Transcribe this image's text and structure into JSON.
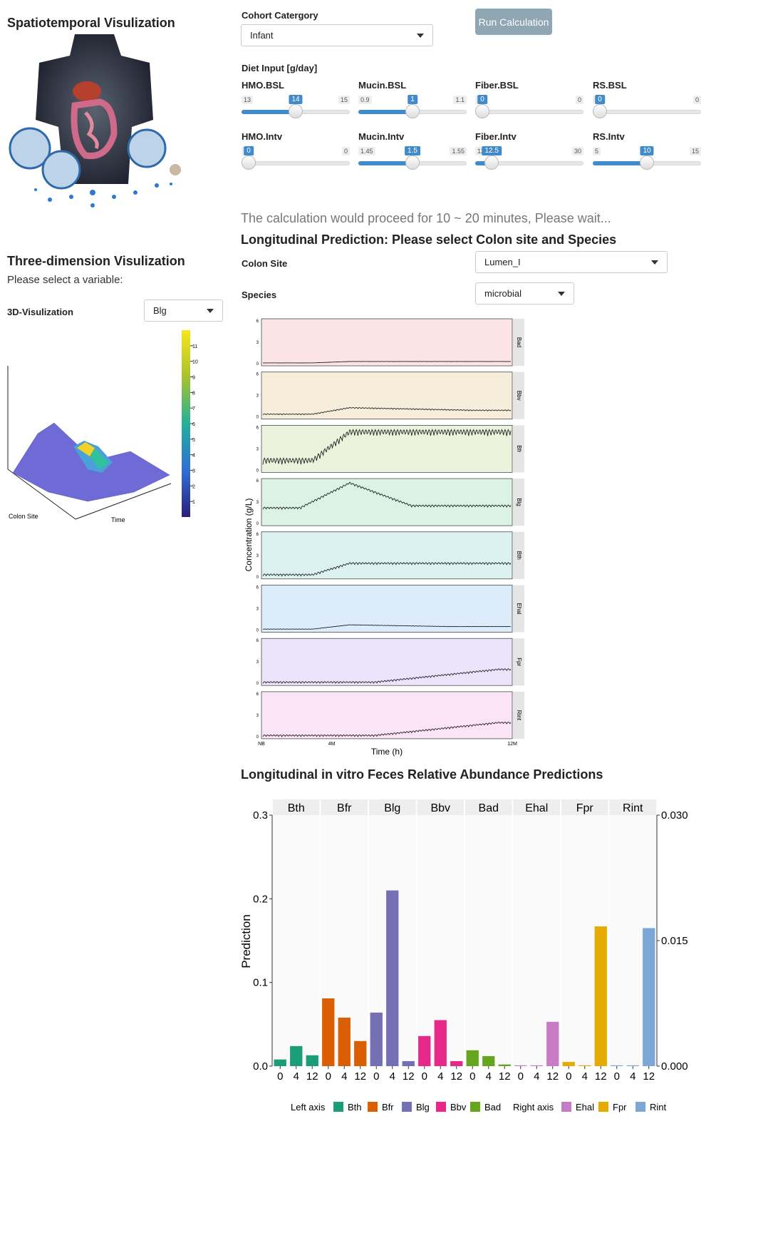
{
  "left": {
    "spatio_title": "Spatiotemporal Visulization",
    "three_d_title": "Three-dimension Visulization",
    "select_prompt": "Please select a variable:",
    "viz_label": "3D-Visulization",
    "viz_value": "Blg",
    "colorbar_ticks": [
      "1",
      "2",
      "3",
      "4",
      "5",
      "6",
      "7",
      "8",
      "9",
      "10",
      "11"
    ],
    "axis_colon": "Colon Site",
    "axis_time": "Time"
  },
  "controls": {
    "cohort_label": "Cohort Catergory",
    "cohort_value": "Infant",
    "run_button": "Run Calculation",
    "diet_label": "Diet Input [g/day]"
  },
  "sliders": [
    {
      "name": "HMO.BSL",
      "min": "13",
      "max": "15",
      "value": "14",
      "frac": 0.5
    },
    {
      "name": "Mucin.BSL",
      "min": "0.9",
      "max": "1.1",
      "value": "1",
      "frac": 0.5
    },
    {
      "name": "Fiber.BSL",
      "min": "0",
      "max": "0",
      "value": "0",
      "frac": 0
    },
    {
      "name": "RS.BSL",
      "min": "0",
      "max": "0",
      "value": "0",
      "frac": 0
    },
    {
      "name": "HMO.Intv",
      "min": "0",
      "max": "0",
      "value": "0",
      "frac": 0
    },
    {
      "name": "Mucin.Intv",
      "min": "1.45",
      "max": "1.55",
      "value": "1.5",
      "frac": 0.5
    },
    {
      "name": "Fiber.Intv",
      "min": "12.5",
      "max": "30",
      "value": "12.5",
      "frac": 0.1
    },
    {
      "name": "RS.Intv",
      "min": "5",
      "max": "15",
      "value": "10",
      "frac": 0.5
    }
  ],
  "wait_text": "The calculation would proceed for 10 ~ 20 minutes, Please wait...",
  "longitudinal": {
    "title": "Longitudinal Prediction: Please select Colon site and Species",
    "colon_label": "Colon Site",
    "colon_value": "Lumen_I",
    "species_label": "Species",
    "species_value": "microbial"
  },
  "chart_data": [
    {
      "type": "line",
      "ylabel": "Concentration (g/L)",
      "xlabel": "Time (h)",
      "x_ticks": [
        "NB",
        "4M",
        "12M"
      ],
      "y_ticks": [
        "0",
        "3",
        "6"
      ],
      "ylim": [
        0,
        6
      ],
      "panels": [
        {
          "name": "Bad",
          "color": "#fce4e4",
          "base": 0.1,
          "jump": 0.2,
          "osc": 0.02,
          "start": 0.2,
          "grow": 0.35
        },
        {
          "name": "Bbv",
          "color": "#f6eddb",
          "base": 0.3,
          "jump": 0.9,
          "osc": 0.15,
          "start": 0.2,
          "grow": 0.35,
          "decay": 0.5
        },
        {
          "name": "Bfr",
          "color": "#ecf3dc",
          "base": 0.8,
          "jump": 4.0,
          "osc": 0.9,
          "start": 0.2,
          "grow": 0.35
        },
        {
          "name": "Blg",
          "color": "#dcf2e4",
          "base": 2.0,
          "jump": 3.5,
          "osc": 0.3,
          "start": 0.15,
          "grow": 0.35,
          "decay": 0.25,
          "final": 0.3
        },
        {
          "name": "Bth",
          "color": "#dcf2f1",
          "base": 0.1,
          "jump": 1.6,
          "osc": 0.3,
          "start": 0.2,
          "grow": 0.35
        },
        {
          "name": "Ehal",
          "color": "#dcecfb",
          "base": 0.1,
          "jump": 0.6,
          "osc": 0.05,
          "start": 0.2,
          "grow": 0.35,
          "decay": 0.4
        },
        {
          "name": "Fpr",
          "color": "#ece4fb",
          "base": 0.0,
          "jump": 1.8,
          "osc": 0.25,
          "start": 0.45,
          "grow": 0.95
        },
        {
          "name": "Rint",
          "color": "#fbe4f5",
          "base": 0.0,
          "jump": 1.8,
          "osc": 0.25,
          "start": 0.45,
          "grow": 0.95
        }
      ]
    },
    {
      "type": "bar",
      "title": "Longitudinal in vitro Feces Relative Abundance Predictions",
      "ylabel": "Prediction",
      "ylim_left": [
        0,
        0.3
      ],
      "ylim_right": [
        0,
        0.03
      ],
      "left_ticks": [
        "0.0",
        "0.1",
        "0.2",
        "0.3"
      ],
      "right_ticks": [
        "0.000",
        "0.015",
        "0.030"
      ],
      "x_categories": [
        "0",
        "4",
        "12"
      ],
      "facets": [
        {
          "name": "Bth",
          "color": "#1b9e77",
          "axis": "left",
          "values": [
            0.008,
            0.024,
            0.013
          ]
        },
        {
          "name": "Bfr",
          "color": "#d95f02",
          "axis": "left",
          "values": [
            0.081,
            0.058,
            0.03
          ]
        },
        {
          "name": "Blg",
          "color": "#7570b3",
          "axis": "left",
          "values": [
            0.064,
            0.21,
            0.006
          ]
        },
        {
          "name": "Bbv",
          "color": "#e7298a",
          "axis": "left",
          "values": [
            0.036,
            0.055,
            0.006
          ]
        },
        {
          "name": "Bad",
          "color": "#66a61e",
          "axis": "left",
          "values": [
            0.019,
            0.012,
            0.002
          ]
        },
        {
          "name": "Ehal",
          "color": "#c77cc5",
          "axis": "right",
          "values": [
            0.0001,
            0.0001,
            0.0053
          ]
        },
        {
          "name": "Fpr",
          "color": "#e6ab02",
          "axis": "right",
          "values": [
            0.0005,
            0.0001,
            0.0167
          ]
        },
        {
          "name": "Rint",
          "color": "#7aa7d6",
          "axis": "right",
          "values": [
            0.0001,
            0.0001,
            0.0165
          ]
        }
      ],
      "legend": {
        "left_title": "Left axis",
        "left_items": [
          {
            "name": "Bth",
            "color": "#1b9e77"
          },
          {
            "name": "Bfr",
            "color": "#d95f02"
          },
          {
            "name": "Blg",
            "color": "#7570b3"
          },
          {
            "name": "Bbv",
            "color": "#e7298a"
          },
          {
            "name": "Bad",
            "color": "#66a61e"
          }
        ],
        "right_title": "Right axis",
        "right_items": [
          {
            "name": "Ehal",
            "color": "#c77cc5"
          },
          {
            "name": "Fpr",
            "color": "#e6ab02"
          },
          {
            "name": "Rint",
            "color": "#7aa7d6"
          }
        ]
      }
    }
  ]
}
